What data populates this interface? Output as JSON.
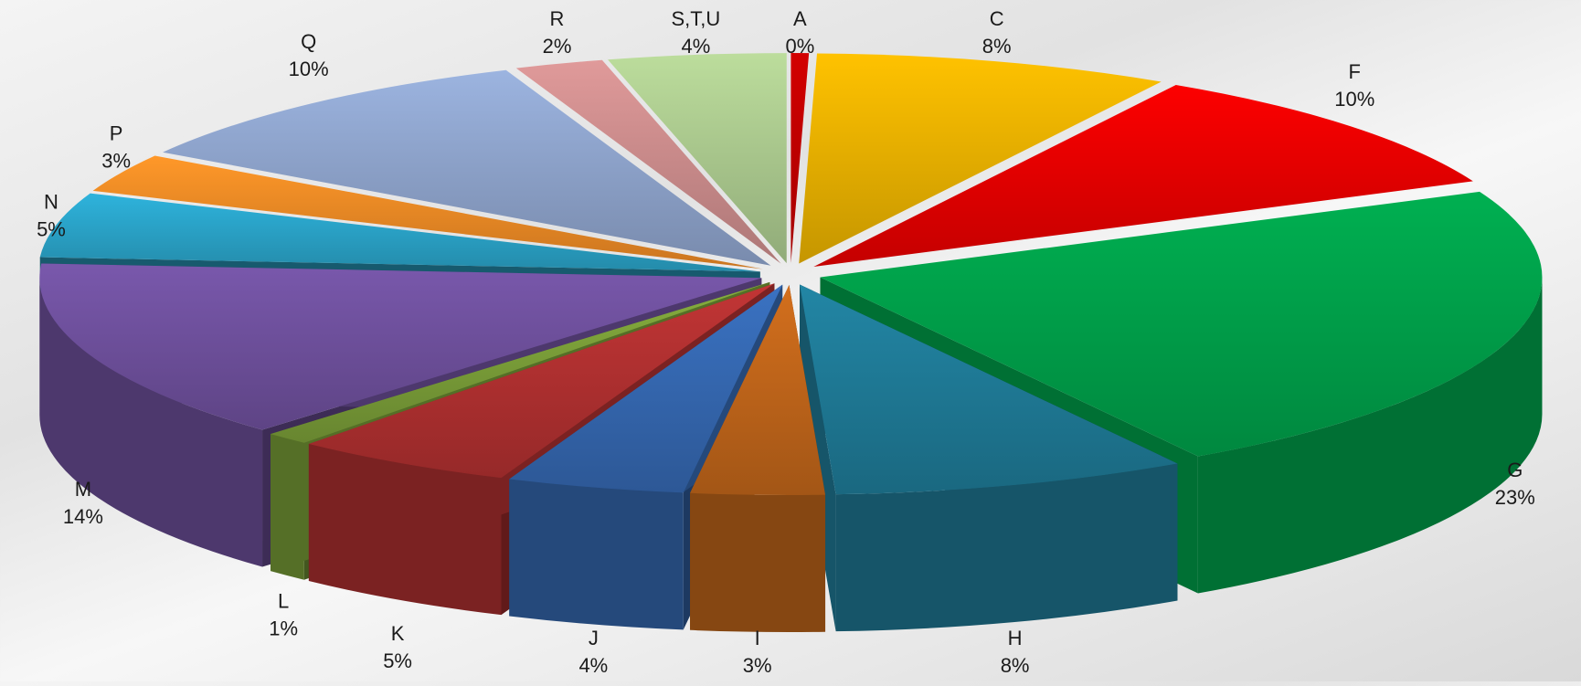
{
  "chart_data": {
    "type": "pie",
    "style": "3d-exploded",
    "slices": [
      {
        "label": "A",
        "pct_text": "0%",
        "value": 0.4,
        "color": "#c00000"
      },
      {
        "label": "C",
        "pct_text": "8%",
        "value": 8,
        "color": "#e8b000"
      },
      {
        "label": "F",
        "pct_text": "10%",
        "value": 10,
        "color": "#e60000"
      },
      {
        "label": "G",
        "pct_text": "23%",
        "value": 23,
        "color": "#00a04a"
      },
      {
        "label": "H",
        "pct_text": "8%",
        "value": 8,
        "color": "#1f7a96"
      },
      {
        "label": "I",
        "pct_text": "3%",
        "value": 3,
        "color": "#c0651a"
      },
      {
        "label": "J",
        "pct_text": "4%",
        "value": 4,
        "color": "#3568b0"
      },
      {
        "label": "K",
        "pct_text": "5%",
        "value": 5,
        "color": "#b03030"
      },
      {
        "label": "L",
        "pct_text": "1%",
        "value": 1,
        "color": "#7a9e38"
      },
      {
        "label": "M",
        "pct_text": "14%",
        "value": 14,
        "color": "#6e509c"
      },
      {
        "label": "N",
        "pct_text": "5%",
        "value": 5,
        "color": "#2aa3c8"
      },
      {
        "label": "P",
        "pct_text": "3%",
        "value": 3,
        "color": "#ee8a25"
      },
      {
        "label": "Q",
        "pct_text": "10%",
        "value": 10,
        "color": "#8ea4cc"
      },
      {
        "label": "R",
        "pct_text": "2%",
        "value": 2,
        "color": "#cc8c8c"
      },
      {
        "label": "S,T,U",
        "pct_text": "4%",
        "value": 4,
        "color": "#abc98e"
      }
    ]
  }
}
